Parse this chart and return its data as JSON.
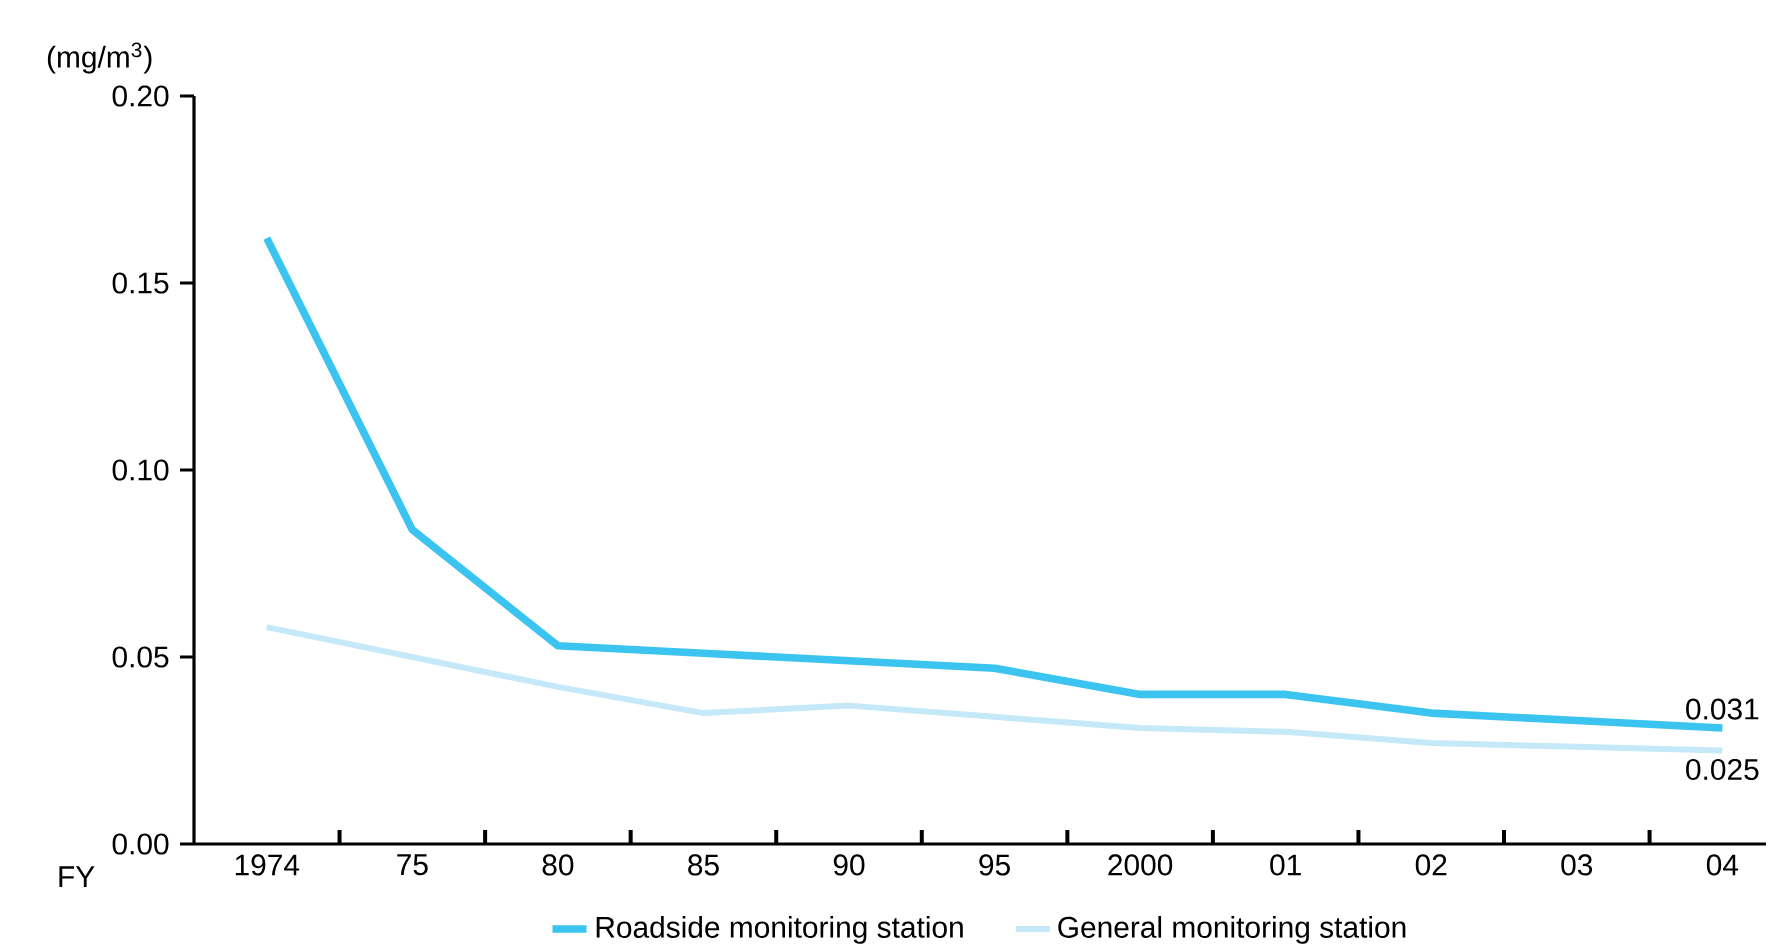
{
  "chart_data": {
    "type": "line",
    "ylabel": "(mg/m$^{3}$)",
    "xlabel": "FY",
    "categories": [
      "1974",
      "75",
      "80",
      "85",
      "90",
      "95",
      "2000",
      "01",
      "02",
      "03",
      "04"
    ],
    "series": [
      {
        "name": "Roadside monitoring station",
        "color": "#3cc4f0",
        "values": [
          0.162,
          0.084,
          0.053,
          0.051,
          0.049,
          0.047,
          0.04,
          0.04,
          0.035,
          0.033,
          0.031
        ],
        "value_labels": [
          null,
          null,
          null,
          null,
          null,
          null,
          null,
          null,
          null,
          null,
          "0.031"
        ]
      },
      {
        "name": "General monitoring station",
        "color": "#c5e9f8",
        "values": [
          0.058,
          0.05,
          0.042,
          0.035,
          0.037,
          0.034,
          0.031,
          0.03,
          0.027,
          0.026,
          0.025
        ],
        "value_labels": [
          null,
          null,
          null,
          null,
          null,
          null,
          null,
          null,
          null,
          null,
          "0.025"
        ]
      }
    ],
    "ylim": [
      0,
      0.2
    ],
    "yticks": [
      {
        "value": 0,
        "label": "0.00"
      },
      {
        "value": 0.05,
        "label": "0.05"
      },
      {
        "value": 0.1,
        "label": "0.10"
      },
      {
        "value": 0.15,
        "label": "0.15"
      },
      {
        "value": 0.2,
        "label": "0.20"
      }
    ],
    "legend": "bottom",
    "grid": false
  }
}
